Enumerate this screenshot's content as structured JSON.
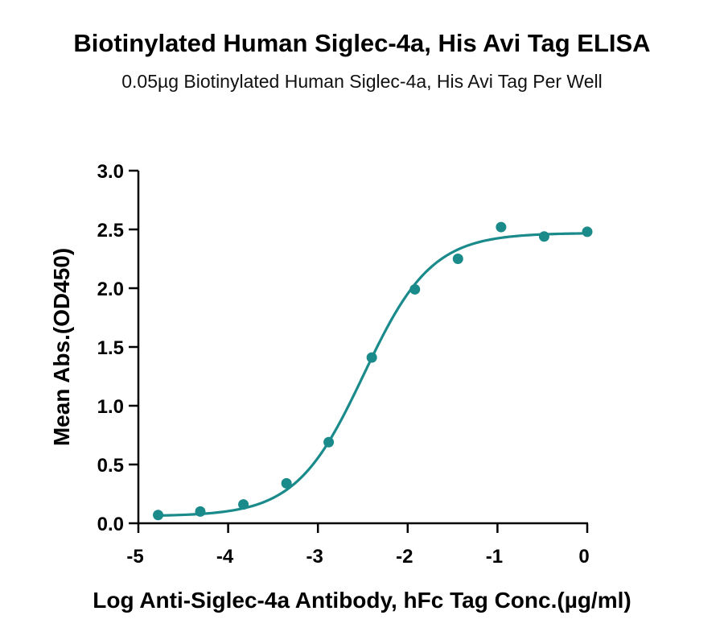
{
  "chart_data": {
    "type": "scatter",
    "title": "Biotinylated Human Siglec-4a, His Avi Tag ELISA",
    "subtitle": "0.05µg Biotinylated Human Siglec-4a, His Avi Tag Per Well",
    "xlabel": "Log Anti-Siglec-4a Antibody, hFc Tag Conc.(µg/ml)",
    "ylabel": "Mean Abs.(OD450)",
    "xlim": [
      -5,
      0
    ],
    "ylim": [
      0,
      3.0
    ],
    "x_ticks": [
      "-5",
      "-4",
      "-3",
      "-2",
      "-1",
      "0"
    ],
    "y_ticks": [
      "0.0",
      "0.5",
      "1.0",
      "1.5",
      "2.0",
      "2.5",
      "3.0"
    ],
    "grid": false,
    "color": "#1a8a8a",
    "series": [
      {
        "x": [
          -4.78,
          -4.31,
          -3.83,
          -3.35,
          -2.88,
          -2.4,
          -1.92,
          -1.44,
          -0.96,
          -0.48,
          0.0
        ],
        "y": [
          0.07,
          0.1,
          0.16,
          0.34,
          0.69,
          1.41,
          1.99,
          2.25,
          2.52,
          2.44,
          2.48
        ]
      }
    ],
    "fit": {
      "type": "4PL",
      "bottom": 0.06,
      "top": 2.47,
      "log_ec50": -2.49,
      "hill_slope": 1.15
    }
  }
}
